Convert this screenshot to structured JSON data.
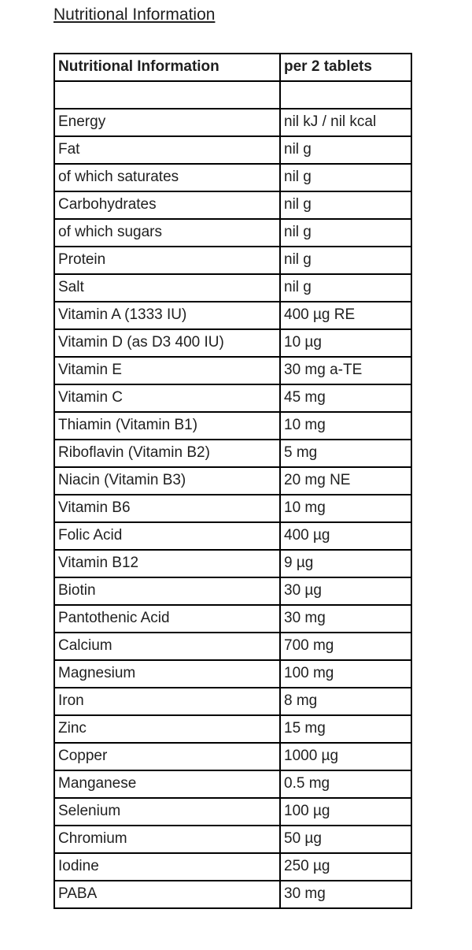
{
  "page_title": "Nutritional Information",
  "colors": {
    "text": "#1f1f1f",
    "border": "#000000",
    "background": "#ffffff"
  },
  "table": {
    "headers": [
      "Nutritional Information",
      "per 2 tablets"
    ],
    "rows": [
      [
        "",
        ""
      ],
      [
        "Energy",
        "nil kJ / nil kcal"
      ],
      [
        "Fat",
        "nil g"
      ],
      [
        "of which saturates",
        "nil g"
      ],
      [
        "Carbohydrates",
        "nil g"
      ],
      [
        "of which sugars",
        "nil g"
      ],
      [
        "Protein",
        "nil g"
      ],
      [
        "Salt",
        "nil g"
      ],
      [
        "Vitamin A (1333 IU)",
        "400 µg RE"
      ],
      [
        "Vitamin D (as D3 400 IU)",
        "10 µg"
      ],
      [
        "Vitamin E",
        "30 mg a-TE"
      ],
      [
        "Vitamin C",
        "45 mg"
      ],
      [
        "Thiamin (Vitamin B1)",
        "10 mg"
      ],
      [
        "Riboflavin (Vitamin B2)",
        "5 mg"
      ],
      [
        "Niacin (Vitamin B3)",
        "20 mg NE"
      ],
      [
        "Vitamin B6",
        "10 mg"
      ],
      [
        "Folic Acid",
        "400 µg"
      ],
      [
        "Vitamin B12",
        "9 µg"
      ],
      [
        "Biotin",
        "30 µg"
      ],
      [
        "Pantothenic Acid",
        "30 mg"
      ],
      [
        "Calcium",
        "700 mg"
      ],
      [
        "Magnesium",
        "100 mg"
      ],
      [
        "Iron",
        "8 mg"
      ],
      [
        "Zinc",
        "15 mg"
      ],
      [
        "Copper",
        "1000 µg"
      ],
      [
        "Manganese",
        "0.5 mg"
      ],
      [
        "Selenium",
        "100 µg"
      ],
      [
        "Chromium",
        "50 µg"
      ],
      [
        "Iodine",
        "250 µg"
      ],
      [
        "PABA",
        "30 mg"
      ]
    ]
  }
}
